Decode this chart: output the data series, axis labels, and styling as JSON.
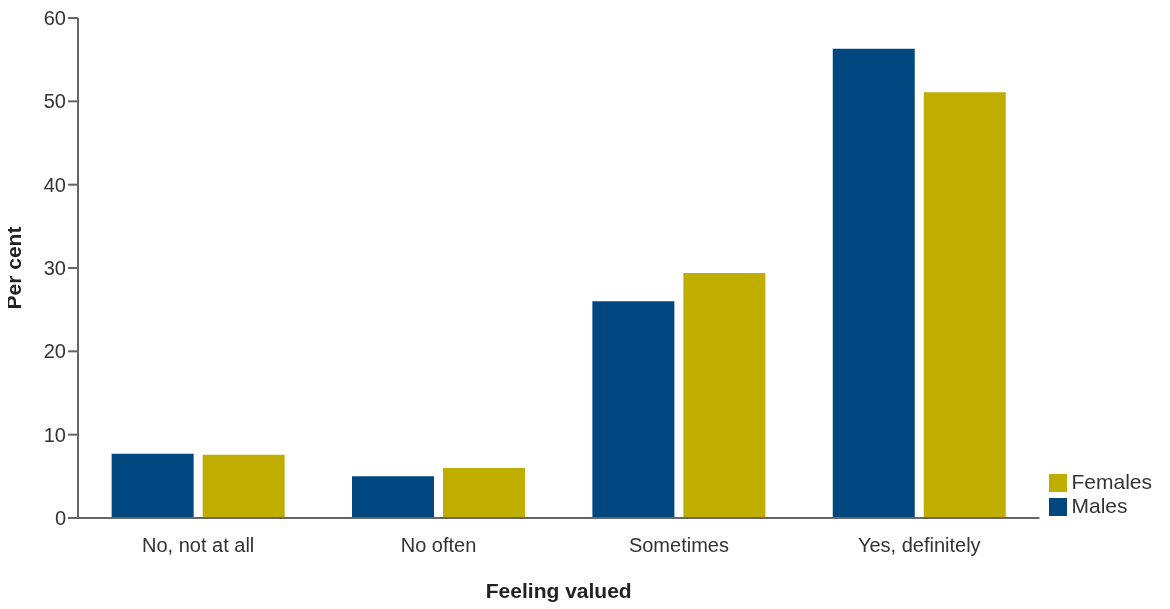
{
  "chart_data": {
    "type": "bar",
    "xlabel": "Feeling valued",
    "ylabel": "Per cent",
    "categories": [
      "No, not at all",
      "No often",
      "Sometimes",
      "Yes, definitely"
    ],
    "series": [
      {
        "name": "Males",
        "color": "#00467f",
        "values": [
          7.7,
          5.0,
          26.0,
          56.3
        ]
      },
      {
        "name": "Females",
        "color": "#bfad00",
        "values": [
          7.6,
          6.0,
          29.4,
          51.1
        ]
      }
    ],
    "ylim": [
      0,
      60
    ],
    "yticks": [
      0,
      10,
      20,
      30,
      40,
      50,
      60
    ],
    "grid": false,
    "legend": "bottom right"
  }
}
